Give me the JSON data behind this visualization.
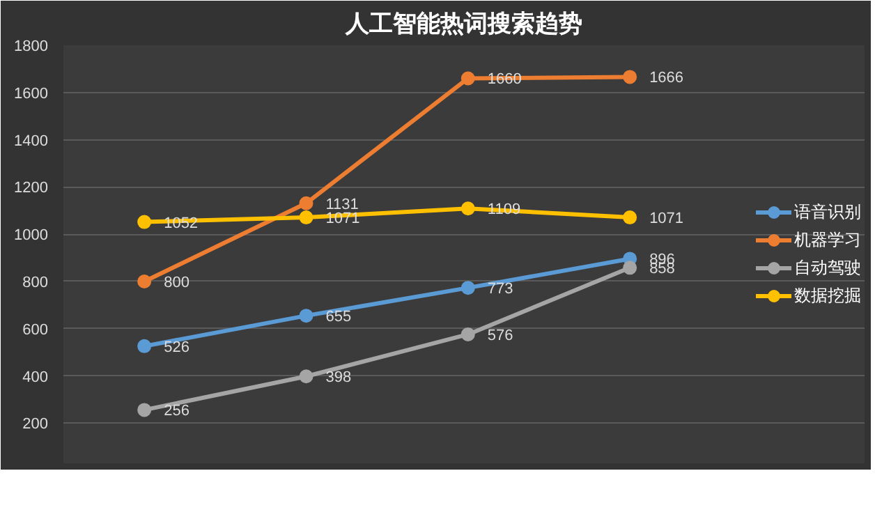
{
  "chart_data": {
    "type": "line",
    "title": "人工智能热词搜索趋势",
    "categories": [
      null,
      null,
      null,
      null
    ],
    "series": [
      {
        "name": "语音识别",
        "color": "#5b9bd5",
        "values": [
          526,
          655,
          773,
          896
        ]
      },
      {
        "name": "机器学习",
        "color": "#ed7d31",
        "values": [
          800,
          1131,
          1660,
          1666
        ]
      },
      {
        "name": "自动驾驶",
        "color": "#a5a5a5",
        "values": [
          256,
          398,
          576,
          858
        ]
      },
      {
        "name": "数据挖掘",
        "color": "#ffc000",
        "values": [
          1052,
          1071,
          1109,
          1071
        ]
      }
    ],
    "ylim": [
      30,
      1800
    ],
    "yticks": [
      200,
      400,
      600,
      800,
      1000,
      1200,
      1400,
      1600,
      1800
    ],
    "grid": "y",
    "legend": "right",
    "marker": "circle",
    "line_style": "solid",
    "data_labels": true
  }
}
